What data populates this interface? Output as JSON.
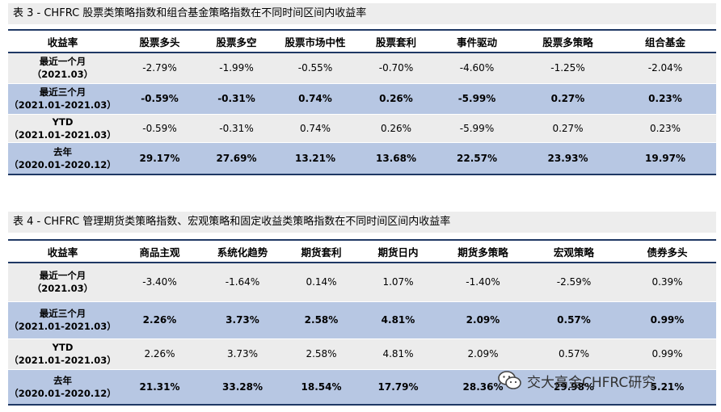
{
  "table3": {
    "caption": "表 3  - CHFRC 股票类策略指数和组合基金策略指数在不同时间区间内收益率",
    "headers": [
      "收益率",
      "股票多头",
      "股票多空",
      "股票市场中性",
      "股票套利",
      "事件驱动",
      "股票多策略",
      "组合基金"
    ],
    "rows": [
      {
        "label1": "最近一个月",
        "label2": "（2021.03）",
        "values": [
          "-2.79%",
          "-1.99%",
          "-0.55%",
          "-0.70%",
          "-4.60%",
          "-1.25%",
          "-2.04%"
        ]
      },
      {
        "label1": "最近三个月",
        "label2": "（2021.01-2021.03）",
        "values": [
          "-0.59%",
          "-0.31%",
          "0.74%",
          "0.26%",
          "-5.99%",
          "0.27%",
          "0.23%"
        ]
      },
      {
        "label1": "YTD",
        "label2": "（2021.01-2021.03）",
        "values": [
          "-0.59%",
          "-0.31%",
          "0.74%",
          "0.26%",
          "-5.99%",
          "0.27%",
          "0.23%"
        ]
      },
      {
        "label1": "去年",
        "label2": "（2020.01-2020.12）",
        "values": [
          "29.17%",
          "27.69%",
          "13.21%",
          "13.68%",
          "22.57%",
          "23.93%",
          "19.97%"
        ]
      }
    ]
  },
  "table4": {
    "caption": "表 4  - CHFRC 管理期货类策略指数、宏观策略和固定收益类策略指数在不同时间区间内收益率",
    "headers": [
      "收益率",
      "商品主观",
      "系统化趋势",
      "期货套利",
      "期货日内",
      "期货多策略",
      "宏观策略",
      "债券多头"
    ],
    "rows": [
      {
        "label1": "最近一个月",
        "label2": "（2021.03）",
        "values": [
          "-3.40%",
          "-1.64%",
          "0.14%",
          "1.07%",
          "-1.40%",
          "-2.59%",
          "0.39%"
        ]
      },
      {
        "label1": "最近三个月",
        "label2": "（2021.01-2021.03）",
        "values": [
          "2.26%",
          "3.73%",
          "2.58%",
          "4.81%",
          "2.09%",
          "0.57%",
          "0.99%"
        ]
      },
      {
        "label1": "YTD",
        "label2": "（2021.01-2021.03）",
        "values": [
          "2.26%",
          "3.73%",
          "2.58%",
          "4.81%",
          "2.09%",
          "0.57%",
          "0.99%"
        ]
      },
      {
        "label1": "去年",
        "label2": "（2020.01-2020.12）",
        "values": [
          "21.31%",
          "33.28%",
          "18.54%",
          "17.79%",
          "28.36%",
          "29.98%",
          "5.21%"
        ]
      }
    ]
  },
  "watermark": {
    "text": "交大高金CHFRC研究",
    "icon": "wechat-icon"
  }
}
